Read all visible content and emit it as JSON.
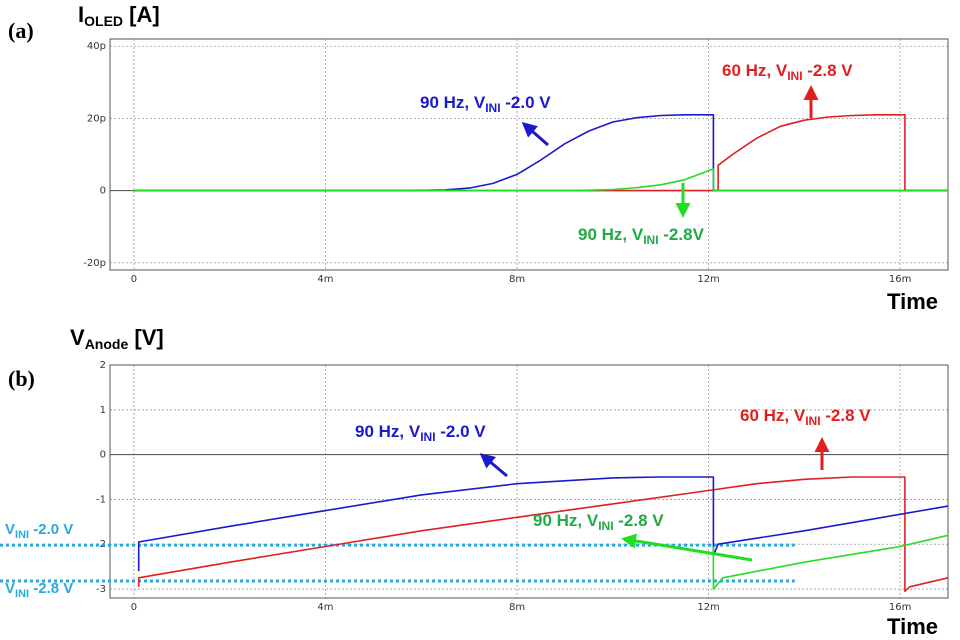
{
  "colors": {
    "blue": "#1a1acc",
    "red": "#e02020",
    "green": "#22dd22",
    "cyan": "#28a9df",
    "grid": "#9a9a9a",
    "frame": "#555555",
    "zero": "#444444"
  },
  "chart_data": [
    {
      "panel": "(a)",
      "type": "line",
      "ylabel": {
        "main": "I",
        "sub": "OLED",
        "unit": " [A]"
      },
      "xlabel": "Time",
      "xlim": [
        -0.0005,
        0.017
      ],
      "ylim": [
        -2.2e-11,
        4.2e-11
      ],
      "xticks": [
        0,
        0.004,
        0.008,
        0.012,
        0.016
      ],
      "xtick_labels": [
        "0",
        "4m",
        "8m",
        "12m",
        "16m"
      ],
      "yticks": [
        -2e-11,
        0,
        2e-11,
        4e-11
      ],
      "ytick_labels": [
        "-20p",
        "0",
        "20p",
        "40p"
      ],
      "grid": true,
      "series": [
        {
          "color": "red",
          "x": [
            0,
            0.0122,
            0.0122,
            0.0125,
            0.013,
            0.0135,
            0.014,
            0.0145,
            0.015,
            0.0155,
            0.0159,
            0.0161,
            0.0161,
            0.017
          ],
          "y": [
            0,
            0,
            7e-12,
            1e-11,
            1.45e-11,
            1.78e-11,
            1.95e-11,
            2.04e-11,
            2.08e-11,
            2.1e-11,
            2.1e-11,
            2.1e-11,
            0,
            0
          ]
        },
        {
          "color": "blue",
          "x": [
            0,
            0.0058,
            0.0065,
            0.007,
            0.0075,
            0.008,
            0.0085,
            0.009,
            0.0095,
            0.01,
            0.0105,
            0.011,
            0.0115,
            0.0121,
            0.0121,
            0.017
          ],
          "y": [
            0,
            0,
            2e-13,
            7e-13,
            2e-12,
            4.5e-12,
            8.5e-12,
            1.3e-11,
            1.65e-11,
            1.9e-11,
            2.02e-11,
            2.08e-11,
            2.1e-11,
            2.1e-11,
            0,
            0
          ]
        },
        {
          "color": "green",
          "x": [
            0,
            0.009,
            0.0095,
            0.01,
            0.0105,
            0.011,
            0.0115,
            0.0121,
            0.0121,
            0.017
          ],
          "y": [
            0,
            0,
            1e-13,
            3e-13,
            8e-13,
            1.6e-12,
            3e-12,
            6e-12,
            0,
            0
          ]
        }
      ],
      "annotations": [
        {
          "color": "blue",
          "main": "90 Hz, V",
          "sub": "INI",
          "rest": " -2.0 V"
        },
        {
          "color": "red",
          "main": "60 Hz, V",
          "sub": "INI",
          "rest": " -2.8 V"
        },
        {
          "color": "green",
          "main": "90 Hz, V",
          "sub": "INI",
          "rest": " -2.8V"
        }
      ]
    },
    {
      "panel": "(b)",
      "type": "line",
      "ylabel": {
        "main": "V",
        "sub": "Anode",
        "unit": " [V]"
      },
      "xlabel": "Time",
      "xlim": [
        -0.0005,
        0.017
      ],
      "ylim": [
        -3.2,
        2
      ],
      "xticks": [
        0,
        0.004,
        0.008,
        0.012,
        0.016
      ],
      "xtick_labels": [
        "0",
        "4m",
        "8m",
        "12m",
        "16m"
      ],
      "yticks": [
        -3,
        -2,
        -1,
        0,
        1,
        2
      ],
      "ytick_labels": [
        "-3",
        "-2",
        "-1",
        "0",
        "1",
        "2"
      ],
      "grid": true,
      "series": [
        {
          "color": "red",
          "x": [
            0.0001,
            0.0001,
            0.002,
            0.004,
            0.006,
            0.008,
            0.01,
            0.012,
            0.013,
            0.014,
            0.015,
            0.0161,
            0.0161,
            0.0162,
            0.017
          ],
          "y": [
            -2.95,
            -2.75,
            -2.4,
            -2.05,
            -1.7,
            -1.4,
            -1.1,
            -0.8,
            -0.65,
            -0.55,
            -0.5,
            -0.5,
            -3.05,
            -2.95,
            -2.75
          ]
        },
        {
          "color": "blue",
          "x": [
            0.0001,
            0.0001,
            0.002,
            0.004,
            0.006,
            0.008,
            0.01,
            0.011,
            0.0121,
            0.0121,
            0.0122,
            0.014,
            0.017
          ],
          "y": [
            -2.6,
            -1.95,
            -1.6,
            -1.25,
            -0.9,
            -0.65,
            -0.52,
            -0.5,
            -0.5,
            -2.25,
            -2.0,
            -1.7,
            -1.15
          ]
        },
        {
          "color": "green",
          "x": [
            0.0121,
            0.0121,
            0.0123,
            0.014,
            0.016,
            0.017
          ],
          "y": [
            -2.05,
            -3.0,
            -2.75,
            -2.4,
            -2.05,
            -1.8
          ]
        }
      ],
      "reference_lines": [
        {
          "y": -2.02,
          "color": "cyan",
          "x1": 0,
          "x2": 0.0138,
          "label": {
            "main": "V",
            "sub": "INI",
            "rest": " -2.0 V"
          }
        },
        {
          "y": -2.82,
          "color": "cyan",
          "x1": 0,
          "x2": 0.0138,
          "label": {
            "main": "V",
            "sub": "INI",
            "rest": " -2.8 V"
          }
        }
      ],
      "annotations": [
        {
          "color": "blue",
          "main": "90 Hz, V",
          "sub": "INI",
          "rest": " -2.0 V"
        },
        {
          "color": "red",
          "main": "60 Hz, V",
          "sub": "INI",
          "rest": " -2.8 V"
        },
        {
          "color": "green",
          "main": "90 Hz, V",
          "sub": "INI",
          "rest": " -2.8 V"
        }
      ]
    }
  ]
}
